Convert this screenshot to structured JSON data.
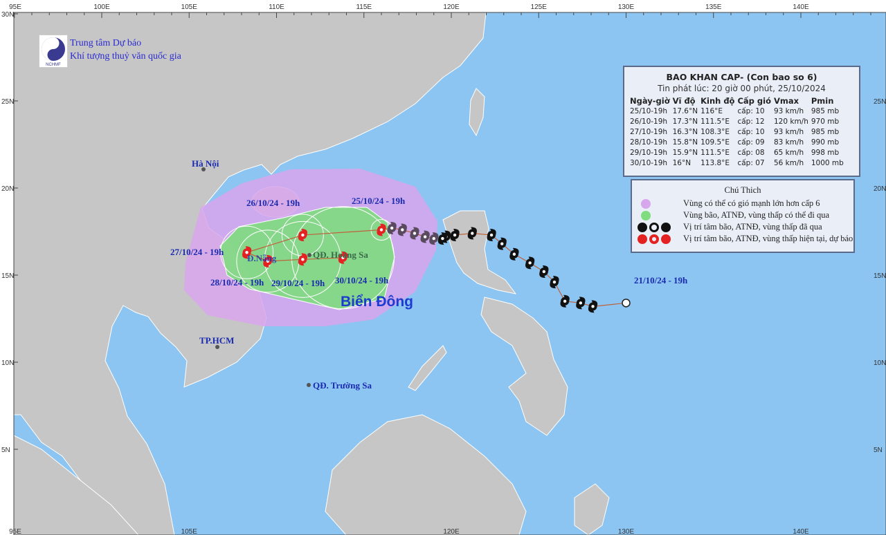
{
  "header": {
    "logo_label": "NCHMF",
    "org_line1": "Trung tâm Dự báo",
    "org_line2": "Khí tượng thuỷ văn quốc gia"
  },
  "axes": {
    "top_ticks": [
      "95E",
      "100E",
      "105E",
      "110E",
      "115E",
      "120E",
      "125E",
      "130E",
      "135E",
      "140E"
    ],
    "bottom_ticks": [
      "95E",
      "105E",
      "120E",
      "130E",
      "140E"
    ],
    "left_ticks": [
      "30N",
      "25N",
      "20N",
      "15N",
      "10N",
      "5N"
    ],
    "right_ticks": [
      "25N",
      "20N",
      "15N",
      "10N",
      "5N"
    ]
  },
  "info_box": {
    "title": "BAO KHAN CAP- (Con bao so 6)",
    "issued": "Tin phát lúc: 20 giờ 00 phút, 25/10/2024",
    "columns": [
      "Ngày-giờ",
      "Vĩ độ",
      "Kinh độ",
      "Cấp gió",
      "Vmax",
      "Pmin"
    ],
    "rows": [
      [
        "25/10-19h",
        "17.6°N",
        "116°E",
        "cấp: 10",
        "93 km/h",
        "985 mb"
      ],
      [
        "26/10-19h",
        "17.3°N",
        "111.5°E",
        "cấp: 12",
        "120 km/h",
        "970 mb"
      ],
      [
        "27/10-19h",
        "16.3°N",
        "108.3°E",
        "cấp: 10",
        "93 km/h",
        "985 mb"
      ],
      [
        "28/10-19h",
        "15.8°N",
        "109.5°E",
        "cấp: 09",
        "83 km/h",
        "990 mb"
      ],
      [
        "29/10-19h",
        "15.9°N",
        "111.5°E",
        "cấp: 08",
        "65 km/h",
        "998 mb"
      ],
      [
        "30/10-19h",
        "16°N",
        "113.8°E",
        "cấp: 07",
        "56 km/h",
        "1000 mb"
      ]
    ]
  },
  "legend": {
    "title": "Chú Thich",
    "items": [
      {
        "label": "Vùng có thể có gió mạnh lớn hơn cấp 6",
        "color": "#d8a6ec"
      },
      {
        "label": "Vùng bão, ATNĐ, vùng thấp có thể đi qua",
        "color": "#7fdc7f"
      },
      {
        "label": "Vị trí tâm bão, ATNĐ, vùng thấp đã qua",
        "color": "#111111"
      },
      {
        "label": "Vị trí tâm bão, ATNĐ, vùng thấp hiện tại, dự báo",
        "color": "#e52222"
      }
    ]
  },
  "places": {
    "hanoi": "Hà Nội",
    "danang": "Đ.Nẵng",
    "hcm": "TP.HCM",
    "hoangsa": "QĐ. Hoàng Sa",
    "truongsa": "QĐ. Trường Sa",
    "sea": "Biển Đông"
  },
  "track": {
    "start_label": "21/10/24 - 19h",
    "past": [
      {
        "lon": 130.0,
        "lat": 13.4
      },
      {
        "lon": 128.1,
        "lat": 13.2
      },
      {
        "lon": 127.4,
        "lat": 13.4
      },
      {
        "lon": 126.5,
        "lat": 13.5
      },
      {
        "lon": 125.9,
        "lat": 14.6
      },
      {
        "lon": 125.3,
        "lat": 15.2
      },
      {
        "lon": 124.5,
        "lat": 15.7
      },
      {
        "lon": 123.6,
        "lat": 16.2
      },
      {
        "lon": 122.9,
        "lat": 16.8
      },
      {
        "lon": 122.3,
        "lat": 17.3
      },
      {
        "lon": 121.2,
        "lat": 17.4
      },
      {
        "lon": 120.2,
        "lat": 17.3
      },
      {
        "lon": 119.7,
        "lat": 17.2
      },
      {
        "lon": 119.5,
        "lat": 17.1
      },
      {
        "lon": 119.0,
        "lat": 17.1
      },
      {
        "lon": 118.5,
        "lat": 17.2
      },
      {
        "lon": 117.9,
        "lat": 17.4
      },
      {
        "lon": 117.2,
        "lat": 17.6
      },
      {
        "lon": 116.6,
        "lat": 17.7
      }
    ],
    "forecast": [
      {
        "label": "25/10/24 - 19h",
        "lon": 116.0,
        "lat": 17.6
      },
      {
        "label": "26/10/24 - 19h",
        "lon": 111.5,
        "lat": 17.3
      },
      {
        "label": "27/10/24 - 19h",
        "lon": 108.3,
        "lat": 16.3
      },
      {
        "label": "28/10/24 - 19h",
        "lon": 109.5,
        "lat": 15.8
      },
      {
        "label": "29/10/24 - 19h",
        "lon": 111.5,
        "lat": 15.9
      },
      {
        "label": "30/10/24 - 19h",
        "lon": 113.8,
        "lat": 16.0
      }
    ]
  },
  "colors": {
    "sea": "#8cc4f2",
    "land": "#c6c6c6",
    "wind_zone": "#d8a6ec",
    "track_zone": "#7fdc7f",
    "current": "#e52222",
    "past": "#111111",
    "track_line": "#c0603a"
  }
}
